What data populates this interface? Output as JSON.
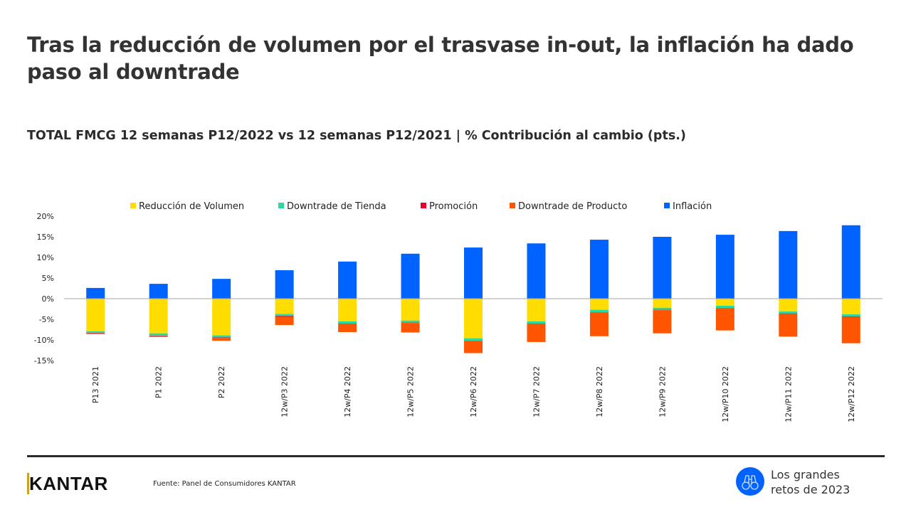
{
  "header": {
    "title": "Tras la reducción de volumen por el trasvase in-out, la inflación ha dado paso al downtrade",
    "subtitle": "TOTAL FMCG 12 semanas P12/2022 vs 12 semanas P12/2021  |  % Contribución al cambio (pts.)"
  },
  "chart_data": {
    "type": "bar",
    "stacked": true,
    "title": "",
    "xlabel": "",
    "ylabel": "",
    "ylim": [
      -15,
      20
    ],
    "yticks": [
      20,
      15,
      10,
      5,
      0,
      -5,
      -10,
      -15
    ],
    "ytick_format": "%",
    "legend_position": "top",
    "grid": false,
    "categories": [
      "P13 2021",
      "P1 2022",
      "P2 2022",
      "12w/P3 2022",
      "12w/P4 2022",
      "12w/P5 2022",
      "12w/P6 2022",
      "12w/P7 2022",
      "12w/P8 2022",
      "12w/P9 2022",
      "12w/P10 2022",
      "12w/P11 2022",
      "12w/P12 2022"
    ],
    "series": [
      {
        "name": "Reducción de Volumen",
        "color": "#FFDD00",
        "values": [
          -7.9,
          -8.4,
          -8.9,
          -3.7,
          -5.5,
          -5.3,
          -9.6,
          -5.5,
          -2.7,
          -2.2,
          -1.7,
          -3.1,
          -3.8
        ]
      },
      {
        "name": "Downtrade de Tienda",
        "color": "#2BD9A0",
        "values": [
          -0.4,
          -0.6,
          -0.5,
          -0.5,
          -0.6,
          -0.5,
          -0.6,
          -0.6,
          -0.6,
          -0.5,
          -0.6,
          -0.5,
          -0.5
        ]
      },
      {
        "name": "Promoción",
        "color": "#E4002B",
        "values": [
          -0.1,
          -0.1,
          -0.1,
          -0.2,
          -0.1,
          -0.1,
          -0.1,
          -0.1,
          -0.1,
          -0.1,
          -0.1,
          -0.1,
          -0.1
        ]
      },
      {
        "name": "Downtrade de Producto",
        "color": "#FF5500",
        "values": [
          -0.2,
          -0.2,
          -0.7,
          -2.0,
          -1.9,
          -2.3,
          -2.9,
          -4.3,
          -5.7,
          -5.6,
          -5.3,
          -5.5,
          -6.4
        ]
      },
      {
        "name": "Inflación",
        "color": "#0062FF",
        "values": [
          2.6,
          3.6,
          4.8,
          6.9,
          9.0,
          10.9,
          12.4,
          13.4,
          14.3,
          15.0,
          15.5,
          16.4,
          17.8
        ]
      }
    ]
  },
  "footer": {
    "logo": "KANTAR",
    "source": "Fuente: Panel de Consumidores KANTAR",
    "badge_line1": "Los grandes",
    "badge_line2": "retos de 2023",
    "badge_icon": "binoculars-icon"
  }
}
